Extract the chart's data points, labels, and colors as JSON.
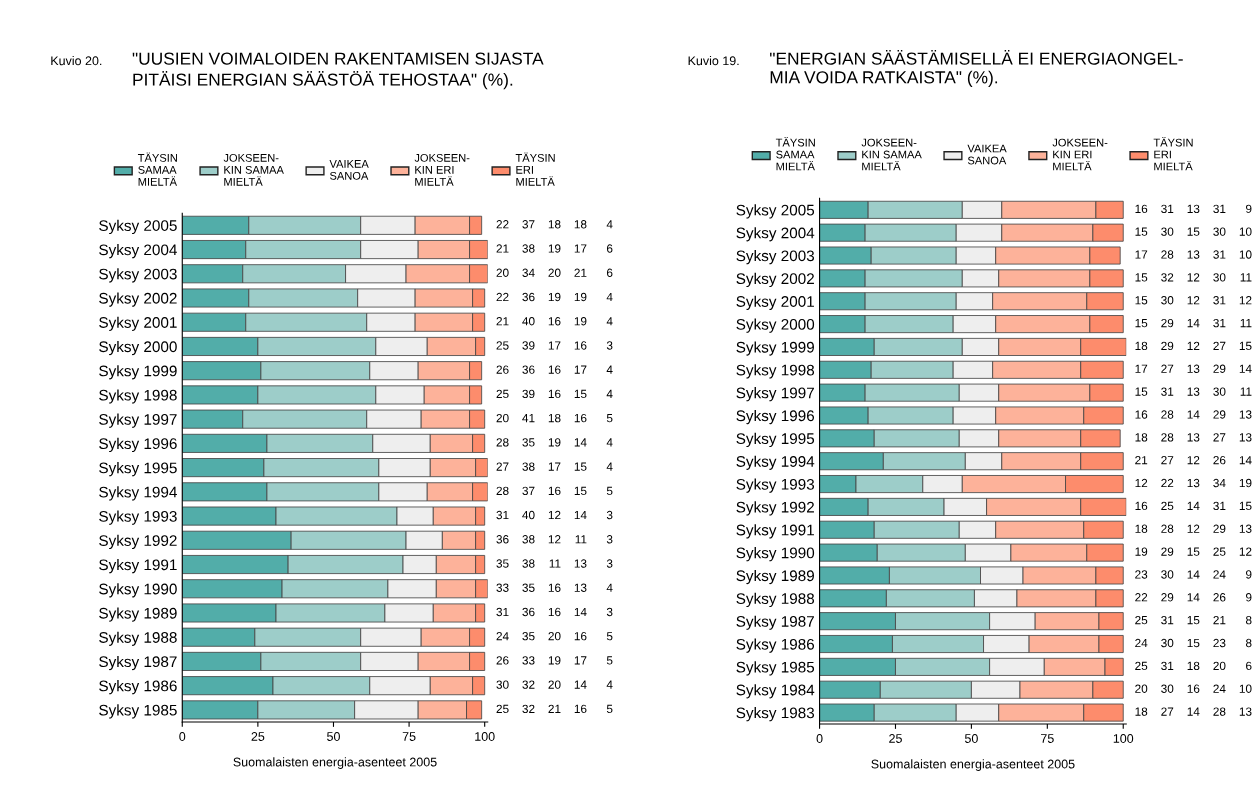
{
  "chart_data": [
    {
      "type": "bar",
      "orientation": "horizontal",
      "stacked": true,
      "data_labels": true,
      "legend": "top",
      "grid": false,
      "title": "\"UUSIEN VOIMALOIDEN RAKENTAMISEN SIJASTA\nPITÄISI ENERGIAN SÄÄSTÖÄ TEHOSTAA\" (%).",
      "annotations": [
        "Kuvio 20."
      ],
      "xlabel": "Suomalaisten energia-asenteet 2005",
      "xlim": [
        0,
        101
      ],
      "xticks": [
        0,
        25,
        50,
        75,
        100
      ],
      "categories": [
        "Syksy 2005",
        "Syksy 2004",
        "Syksy 2003",
        "Syksy 2002",
        "Syksy 2001",
        "Syksy 2000",
        "Syksy 1999",
        "Syksy 1998",
        "Syksy 1997",
        "Syksy 1996",
        "Syksy 1995",
        "Syksy 1994",
        "Syksy 1993",
        "Syksy 1992",
        "Syksy 1991",
        "Syksy 1990",
        "Syksy 1989",
        "Syksy 1988",
        "Syksy 1987",
        "Syksy 1986",
        "Syksy 1985"
      ],
      "series": [
        {
          "name": "TÄYSIN\nSAMAA\nMIELTÄ",
          "color": "#52ada9",
          "values": [
            22,
            21,
            20,
            22,
            21,
            25,
            26,
            25,
            20,
            28,
            27,
            28,
            31,
            36,
            35,
            33,
            31,
            24,
            26,
            30,
            25
          ]
        },
        {
          "name": "JOKSEEN-\nKIN SAMAA\nMIELTÄ",
          "color": "#9dcdc9",
          "values": [
            37,
            38,
            34,
            36,
            40,
            39,
            36,
            39,
            41,
            35,
            38,
            37,
            40,
            38,
            38,
            35,
            36,
            35,
            33,
            32,
            32
          ]
        },
        {
          "name": "VAIKEA\nSANOA",
          "color": "#eeeeee",
          "values": [
            18,
            19,
            20,
            19,
            16,
            17,
            16,
            16,
            18,
            19,
            17,
            16,
            12,
            12,
            11,
            16,
            16,
            20,
            19,
            20,
            21
          ]
        },
        {
          "name": "JOKSEEN-\nKIN ERI\nMIELTÄ",
          "color": "#fdb29a",
          "values": [
            18,
            17,
            21,
            19,
            19,
            16,
            17,
            15,
            16,
            14,
            15,
            15,
            14,
            11,
            13,
            13,
            14,
            16,
            17,
            14,
            16
          ]
        },
        {
          "name": "TÄYSIN\nERI\nMIELTÄ",
          "color": "#fd8c6c",
          "values": [
            4,
            6,
            6,
            4,
            4,
            3,
            4,
            4,
            5,
            4,
            4,
            5,
            3,
            3,
            3,
            4,
            3,
            5,
            5,
            4,
            5
          ]
        }
      ]
    },
    {
      "type": "bar",
      "orientation": "horizontal",
      "stacked": true,
      "data_labels": true,
      "legend": "top",
      "grid": false,
      "title": "\"ENERGIAN SÄÄSTÄMISELLÄ EI ENERGIAONGEL-\nMIA VOIDA RATKAISTA\" (%).",
      "annotations": [
        "Kuvio 19."
      ],
      "xlabel": "Suomalaisten energia-asenteet 2005",
      "xlim": [
        0,
        101
      ],
      "xticks": [
        0,
        25,
        50,
        75,
        100
      ],
      "categories": [
        "Syksy 2005",
        "Syksy 2004",
        "Syksy 2003",
        "Syksy 2002",
        "Syksy 2001",
        "Syksy 2000",
        "Syksy 1999",
        "Syksy 1998",
        "Syksy 1997",
        "Syksy 1996",
        "Syksy 1995",
        "Syksy 1994",
        "Syksy 1993",
        "Syksy 1992",
        "Syksy 1991",
        "Syksy 1990",
        "Syksy 1989",
        "Syksy 1988",
        "Syksy 1987",
        "Syksy 1986",
        "Syksy 1985",
        "Syksy 1984",
        "Syksy 1983"
      ],
      "series": [
        {
          "name": "TÄYSIN\nSAMAA\nMIELTÄ",
          "color": "#52ada9",
          "values": [
            16,
            15,
            17,
            15,
            15,
            15,
            18,
            17,
            15,
            16,
            18,
            21,
            12,
            16,
            18,
            19,
            23,
            22,
            25,
            24,
            25,
            20,
            18
          ]
        },
        {
          "name": "JOKSEEN-\nKIN SAMAA\nMIELTÄ",
          "color": "#9dcdc9",
          "values": [
            31,
            30,
            28,
            32,
            30,
            29,
            29,
            27,
            31,
            28,
            28,
            27,
            22,
            25,
            28,
            29,
            30,
            29,
            31,
            30,
            31,
            30,
            27
          ]
        },
        {
          "name": "VAIKEA\nSANOA",
          "color": "#eeeeee",
          "values": [
            13,
            15,
            13,
            12,
            12,
            14,
            12,
            13,
            13,
            14,
            13,
            12,
            13,
            14,
            12,
            15,
            14,
            14,
            15,
            15,
            18,
            16,
            14
          ]
        },
        {
          "name": "JOKSEEN-\nKIN ERI\nMIELTÄ",
          "color": "#fdb29a",
          "values": [
            31,
            30,
            31,
            30,
            31,
            31,
            27,
            29,
            30,
            29,
            27,
            26,
            34,
            31,
            29,
            25,
            24,
            26,
            21,
            23,
            20,
            24,
            28
          ]
        },
        {
          "name": "TÄYSIN\nERI\nMIELTÄ",
          "color": "#fd8c6c",
          "values": [
            9,
            10,
            10,
            11,
            12,
            11,
            15,
            14,
            11,
            13,
            13,
            14,
            19,
            15,
            13,
            12,
            9,
            9,
            8,
            8,
            6,
            10,
            13
          ]
        }
      ]
    }
  ]
}
